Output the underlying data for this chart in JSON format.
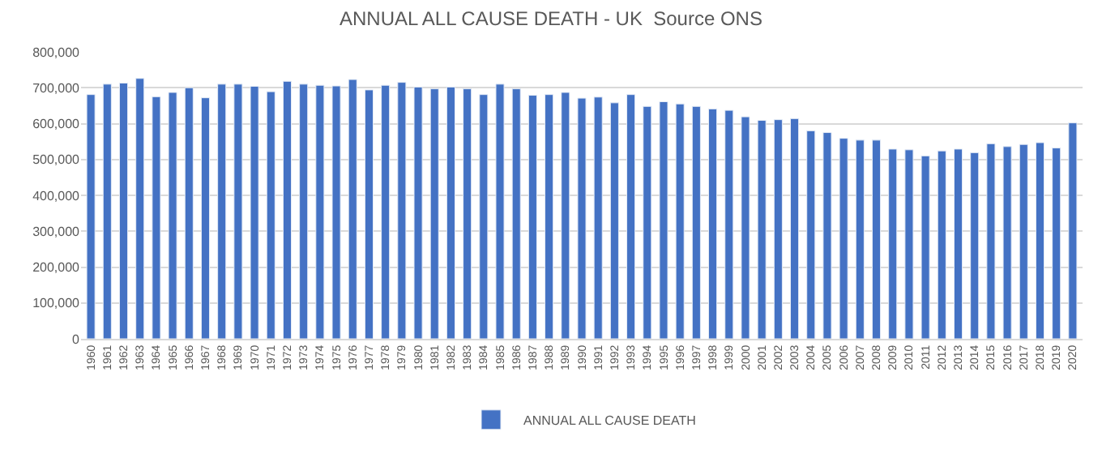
{
  "chart_data": {
    "type": "bar",
    "title": "ANNUAL ALL CAUSE DEATH - UK  Source ONS",
    "categories": [
      "1960",
      "1961",
      "1962",
      "1963",
      "1964",
      "1965",
      "1966",
      "1967",
      "1968",
      "1969",
      "1970",
      "1971",
      "1972",
      "1973",
      "1974",
      "1975",
      "1976",
      "1977",
      "1978",
      "1979",
      "1980",
      "1981",
      "1982",
      "1983",
      "1984",
      "1985",
      "1986",
      "1987",
      "1988",
      "1989",
      "1990",
      "1991",
      "1992",
      "1993",
      "1994",
      "1995",
      "1996",
      "1997",
      "1998",
      "1999",
      "2000",
      "2001",
      "2002",
      "2003",
      "2004",
      "2005",
      "2006",
      "2007",
      "2008",
      "2009",
      "2010",
      "2011",
      "2012",
      "2013",
      "2014",
      "2015",
      "2016",
      "2017",
      "2018",
      "2019",
      "2020"
    ],
    "series": [
      {
        "name": "ANNUAL ALL CAUSE DEATH",
        "color": "#4472c4",
        "values": [
          681000,
          710000,
          713000,
          726000,
          675000,
          687000,
          700000,
          672000,
          710000,
          710000,
          704000,
          689000,
          718000,
          710000,
          707000,
          705000,
          723000,
          694000,
          707000,
          715000,
          702000,
          697000,
          702000,
          697000,
          681000,
          710000,
          697000,
          679000,
          681000,
          687000,
          671000,
          674000,
          658000,
          681000,
          648000,
          661000,
          655000,
          648000,
          641000,
          637000,
          619000,
          609000,
          611000,
          614000,
          580000,
          575000,
          559000,
          554000,
          554000,
          529000,
          527000,
          510000,
          524000,
          529000,
          519000,
          544000,
          536000,
          542000,
          547000,
          532000,
          602000
        ]
      }
    ],
    "ylim": [
      0,
      800000
    ],
    "yticks": [
      {
        "value": 0,
        "label": "0"
      },
      {
        "value": 100000,
        "label": "100,000"
      },
      {
        "value": 200000,
        "label": "200,000"
      },
      {
        "value": 300000,
        "label": "300,000"
      },
      {
        "value": 400000,
        "label": "400,000"
      },
      {
        "value": 500000,
        "label": "500,000"
      },
      {
        "value": 600000,
        "label": "600,000"
      },
      {
        "value": 700000,
        "label": "700,000"
      },
      {
        "value": 800000,
        "label": "800,000"
      }
    ],
    "grid": "y",
    "legend": "bottom"
  }
}
